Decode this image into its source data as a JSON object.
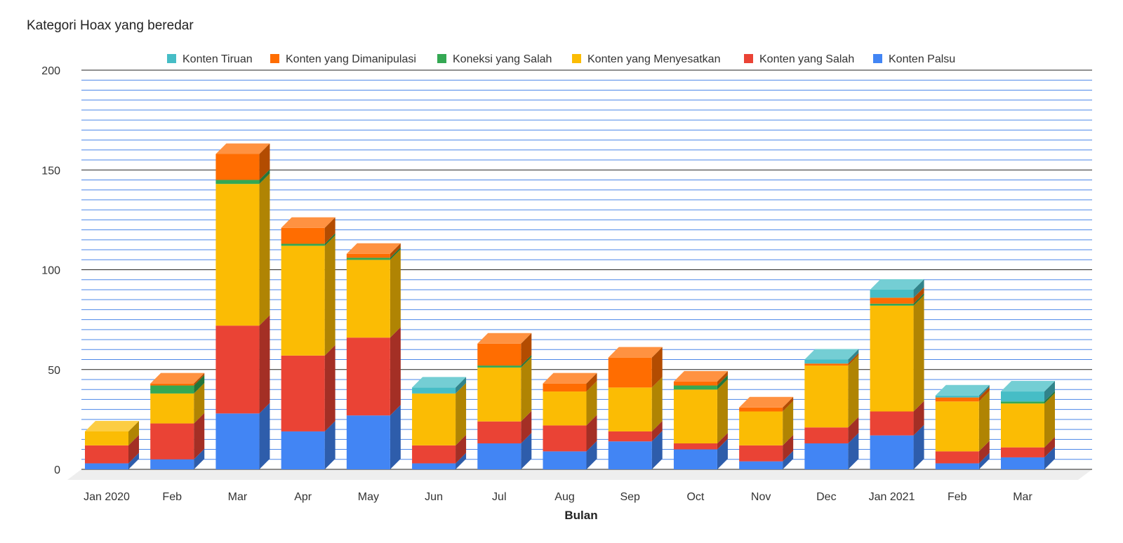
{
  "chart_data": {
    "type": "bar",
    "stacked": true,
    "title": "Kategori Hoax yang beredar",
    "xlabel": "Bulan",
    "ylabel": "",
    "ylim": [
      0,
      200
    ],
    "yticks": [
      0,
      50,
      100,
      150,
      200
    ],
    "grid": true,
    "legend_position": "top",
    "categories": [
      "Jan 2020",
      "Feb",
      "Mar",
      "Apr",
      "May",
      "Jun",
      "Jul",
      "Aug",
      "Sep",
      "Oct",
      "Nov",
      "Dec",
      "Jan 2021",
      "Feb",
      "Mar"
    ],
    "series": [
      {
        "name": "Konten Palsu",
        "color": "#4285f4",
        "values": [
          3,
          5,
          28,
          19,
          27,
          3,
          13,
          9,
          14,
          10,
          4,
          13,
          17,
          3,
          6
        ]
      },
      {
        "name": "Konten yang Salah",
        "color": "#ea4335",
        "values": [
          9,
          18,
          44,
          38,
          39,
          9,
          11,
          13,
          5,
          3,
          8,
          8,
          12,
          6,
          5
        ]
      },
      {
        "name": "Konten yang Menyesatkan",
        "color": "#fbbc04",
        "values": [
          7,
          15,
          71,
          55,
          39,
          26,
          27,
          17,
          22,
          27,
          17,
          31,
          53,
          25,
          22
        ]
      },
      {
        "name": "Koneksi yang Salah",
        "color": "#34a853",
        "values": [
          0,
          4,
          2,
          1,
          1,
          0,
          1,
          0,
          0,
          2,
          0,
          0,
          1,
          0,
          1
        ]
      },
      {
        "name": "Konten yang Dimanipulasi",
        "color": "#ff6d01",
        "values": [
          0,
          1,
          13,
          8,
          2,
          0,
          11,
          4,
          15,
          2,
          2,
          1,
          3,
          2,
          0
        ]
      },
      {
        "name": "Konten Tiruan",
        "color": "#46bdc6",
        "values": [
          0,
          0,
          0,
          0,
          0,
          3,
          0,
          0,
          0,
          0,
          0,
          2,
          4,
          1,
          5
        ]
      }
    ],
    "legend_order": [
      "Konten Tiruan",
      "Konten yang Dimanipulasi",
      "Koneksi yang Salah",
      "Konten yang Menyesatkan",
      "Konten yang Salah",
      "Konten Palsu"
    ]
  }
}
